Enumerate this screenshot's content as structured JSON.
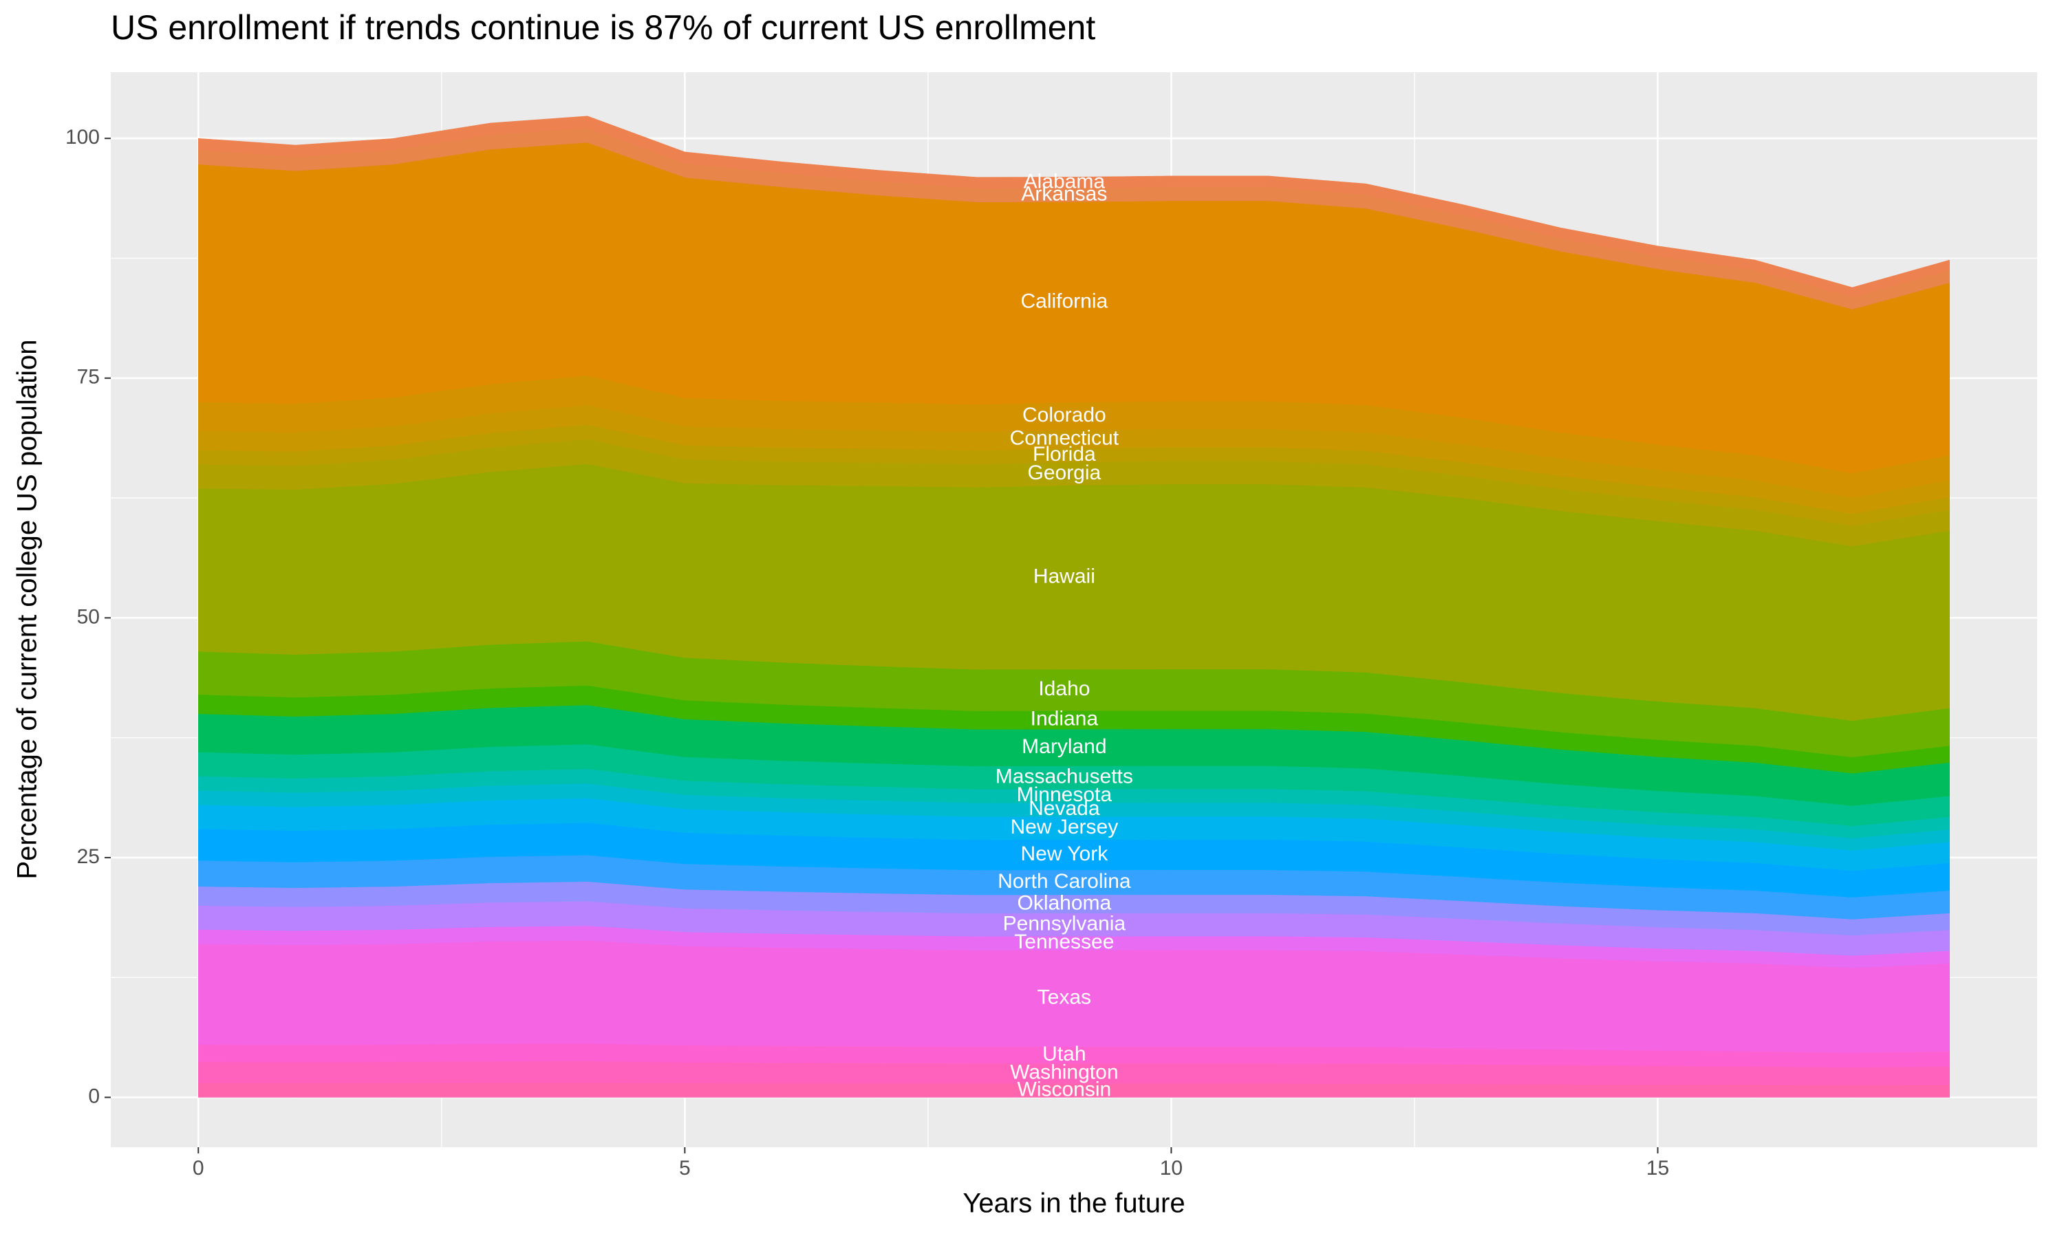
{
  "chart_data": {
    "type": "stacked-area",
    "title": "US enrollment if trends continue is 87% of current US enrollment",
    "x_label": "Years in the future",
    "y_label": "Percentage of current college US population",
    "x": [
      0,
      1,
      2,
      3,
      4,
      5,
      6,
      7,
      8,
      9,
      10,
      11,
      12,
      13,
      14,
      15,
      16,
      17,
      18
    ],
    "xlim": [
      -0.9,
      18.9
    ],
    "xticks": [
      0,
      5,
      10,
      15
    ],
    "ylim": [
      -5.2,
      106.9
    ],
    "yticks": [
      0,
      25,
      50,
      75,
      100
    ],
    "grid": true,
    "series": [
      {
        "name": "Alabama",
        "color": "#ee8150",
        "values": [
          1.2,
          1.19,
          1.2,
          1.22,
          1.23,
          1.18,
          1.17,
          1.16,
          1.15,
          1.15,
          1.15,
          1.15,
          1.14,
          1.12,
          1.09,
          1.07,
          1.05,
          1.01,
          1.05
        ]
      },
      {
        "name": "Arkansas",
        "color": "#e8854a",
        "values": [
          1.5,
          1.49,
          1.5,
          1.52,
          1.53,
          1.48,
          1.46,
          1.45,
          1.44,
          1.44,
          1.44,
          1.44,
          1.43,
          1.4,
          1.36,
          1.33,
          1.31,
          1.27,
          1.31
        ]
      },
      {
        "name": "California",
        "color": "#e08b00",
        "values": [
          24.8,
          24.3,
          24.3,
          24.5,
          24.3,
          23.0,
          22.3,
          21.6,
          21.1,
          20.9,
          20.9,
          20.9,
          20.5,
          19.7,
          18.9,
          18.3,
          18.0,
          17.1,
          18.0
        ]
      },
      {
        "name": "Colorado",
        "color": "#d39200",
        "values": [
          3,
          2.98,
          3,
          3.05,
          3.07,
          2.96,
          2.93,
          2.9,
          2.88,
          2.88,
          2.88,
          2.88,
          2.86,
          2.79,
          2.72,
          2.66,
          2.62,
          2.53,
          2.62
        ]
      },
      {
        "name": "Connecticut",
        "color": "#c99700",
        "values": [
          2,
          1.99,
          2,
          2.03,
          2.05,
          1.97,
          1.95,
          1.93,
          1.92,
          1.92,
          1.92,
          1.92,
          1.91,
          1.86,
          1.81,
          1.78,
          1.75,
          1.69,
          1.75
        ]
      },
      {
        "name": "Florida",
        "color": "#bb9d00",
        "values": [
          1.5,
          1.49,
          1.5,
          1.52,
          1.53,
          1.48,
          1.46,
          1.45,
          1.44,
          1.44,
          1.44,
          1.44,
          1.43,
          1.4,
          1.36,
          1.33,
          1.31,
          1.27,
          1.31
        ]
      },
      {
        "name": "Georgia",
        "color": "#afa100",
        "values": [
          2.5,
          2.48,
          2.5,
          2.54,
          2.56,
          2.47,
          2.44,
          2.42,
          2.4,
          2.4,
          2.4,
          2.4,
          2.38,
          2.33,
          2.27,
          2.22,
          2.18,
          2.11,
          2.18
        ]
      },
      {
        "name": "Hawaii",
        "color": "#99a800",
        "values": [
          17,
          17.2,
          17.5,
          18,
          18.5,
          18.2,
          18.5,
          18.8,
          19,
          19.2,
          19.3,
          19.3,
          19.3,
          19.2,
          19,
          18.8,
          18.5,
          18.2,
          18.5
        ]
      },
      {
        "name": "Idaho",
        "color": "#6bb100",
        "values": [
          4.5,
          4.47,
          4.5,
          4.57,
          4.6,
          4.44,
          4.39,
          4.35,
          4.32,
          4.32,
          4.32,
          4.32,
          4.29,
          4.19,
          4.08,
          4,
          3.93,
          3.8,
          3.93
        ]
      },
      {
        "name": "Indiana",
        "color": "#3fb500",
        "values": [
          2,
          1.99,
          2,
          2.03,
          2.05,
          1.97,
          1.95,
          1.93,
          1.92,
          1.92,
          1.92,
          1.92,
          1.91,
          1.86,
          1.81,
          1.78,
          1.75,
          1.69,
          1.75
        ]
      },
      {
        "name": "Maryland",
        "color": "#00bc5c",
        "values": [
          4,
          3.97,
          4,
          4.06,
          4.09,
          3.94,
          3.9,
          3.87,
          3.84,
          3.84,
          3.84,
          3.84,
          3.81,
          3.72,
          3.63,
          3.55,
          3.49,
          3.38,
          3.49
        ]
      },
      {
        "name": "Massachusetts",
        "color": "#00c08b",
        "values": [
          2.5,
          2.48,
          2.5,
          2.54,
          2.56,
          2.47,
          2.44,
          2.42,
          2.4,
          2.4,
          2.4,
          2.4,
          2.38,
          2.33,
          2.27,
          2.22,
          2.18,
          2.11,
          2.18
        ]
      },
      {
        "name": "Minnesota",
        "color": "#00bfb0",
        "values": [
          1.5,
          1.49,
          1.5,
          1.52,
          1.53,
          1.48,
          1.46,
          1.45,
          1.44,
          1.44,
          1.44,
          1.44,
          1.43,
          1.4,
          1.36,
          1.33,
          1.31,
          1.27,
          1.31
        ]
      },
      {
        "name": "Nevada",
        "color": "#00bbd0",
        "values": [
          1.5,
          1.49,
          1.5,
          1.52,
          1.53,
          1.48,
          1.46,
          1.45,
          1.44,
          1.44,
          1.44,
          1.44,
          1.43,
          1.4,
          1.36,
          1.33,
          1.31,
          1.27,
          1.31
        ]
      },
      {
        "name": "New Jersey",
        "color": "#00b4ef",
        "values": [
          2.5,
          2.48,
          2.5,
          2.54,
          2.56,
          2.47,
          2.44,
          2.42,
          2.4,
          2.4,
          2.4,
          2.4,
          2.38,
          2.33,
          2.27,
          2.22,
          2.18,
          2.11,
          2.18
        ]
      },
      {
        "name": "New York",
        "color": "#00a9ff",
        "values": [
          3.3,
          3.28,
          3.3,
          3.35,
          3.38,
          3.25,
          3.22,
          3.19,
          3.16,
          3.17,
          3.17,
          3.17,
          3.14,
          3.07,
          2.99,
          2.93,
          2.88,
          2.79,
          2.88
        ]
      },
      {
        "name": "North Carolina",
        "color": "#35a2ff",
        "values": [
          2.7,
          2.68,
          2.7,
          2.74,
          2.76,
          2.66,
          2.63,
          2.61,
          2.59,
          2.59,
          2.59,
          2.59,
          2.57,
          2.51,
          2.45,
          2.4,
          2.36,
          2.28,
          2.36
        ]
      },
      {
        "name": "Oklahoma",
        "color": "#9590ff",
        "values": [
          2,
          1.99,
          2,
          2.03,
          2.05,
          1.97,
          1.95,
          1.93,
          1.92,
          1.92,
          1.92,
          1.92,
          1.91,
          1.86,
          1.81,
          1.78,
          1.75,
          1.69,
          1.75
        ]
      },
      {
        "name": "Pennsylvania",
        "color": "#b983ff",
        "values": [
          2.5,
          2.48,
          2.5,
          2.54,
          2.56,
          2.47,
          2.44,
          2.42,
          2.4,
          2.4,
          2.4,
          2.4,
          2.38,
          2.33,
          2.27,
          2.22,
          2.18,
          2.11,
          2.18
        ]
      },
      {
        "name": "Tennessee",
        "color": "#e76bf3",
        "values": [
          1.5,
          1.49,
          1.5,
          1.52,
          1.53,
          1.48,
          1.46,
          1.45,
          1.44,
          1.44,
          1.44,
          1.44,
          1.43,
          1.4,
          1.36,
          1.33,
          1.31,
          1.27,
          1.31
        ]
      },
      {
        "name": "Texas",
        "color": "#f564e3",
        "values": [
          10.5,
          10.43,
          10.49,
          10.67,
          10.74,
          10.35,
          10.24,
          10.15,
          10.07,
          10.08,
          10.09,
          10.09,
          10.01,
          9.77,
          9.52,
          9.32,
          9.17,
          8.86,
          9.17
        ]
      },
      {
        "name": "Utah",
        "color": "#fd61d1",
        "values": [
          1.8,
          1.79,
          1.8,
          1.83,
          1.84,
          1.77,
          1.76,
          1.74,
          1.73,
          1.73,
          1.73,
          1.73,
          1.72,
          1.67,
          1.63,
          1.6,
          1.57,
          1.52,
          1.57
        ]
      },
      {
        "name": "Washington",
        "color": "#ff62bc",
        "values": [
          2.2,
          2.18,
          2.2,
          2.24,
          2.25,
          2.17,
          2.15,
          2.13,
          2.11,
          2.11,
          2.11,
          2.11,
          2.1,
          2.05,
          2,
          1.95,
          1.92,
          1.86,
          1.92
        ]
      },
      {
        "name": "Wisconsin",
        "color": "#ff65ac",
        "values": [
          1.5,
          1.49,
          1.5,
          1.52,
          1.53,
          1.48,
          1.46,
          1.45,
          1.44,
          1.44,
          1.44,
          1.44,
          1.43,
          1.4,
          1.36,
          1.33,
          1.31,
          1.27,
          1.31
        ]
      }
    ]
  }
}
